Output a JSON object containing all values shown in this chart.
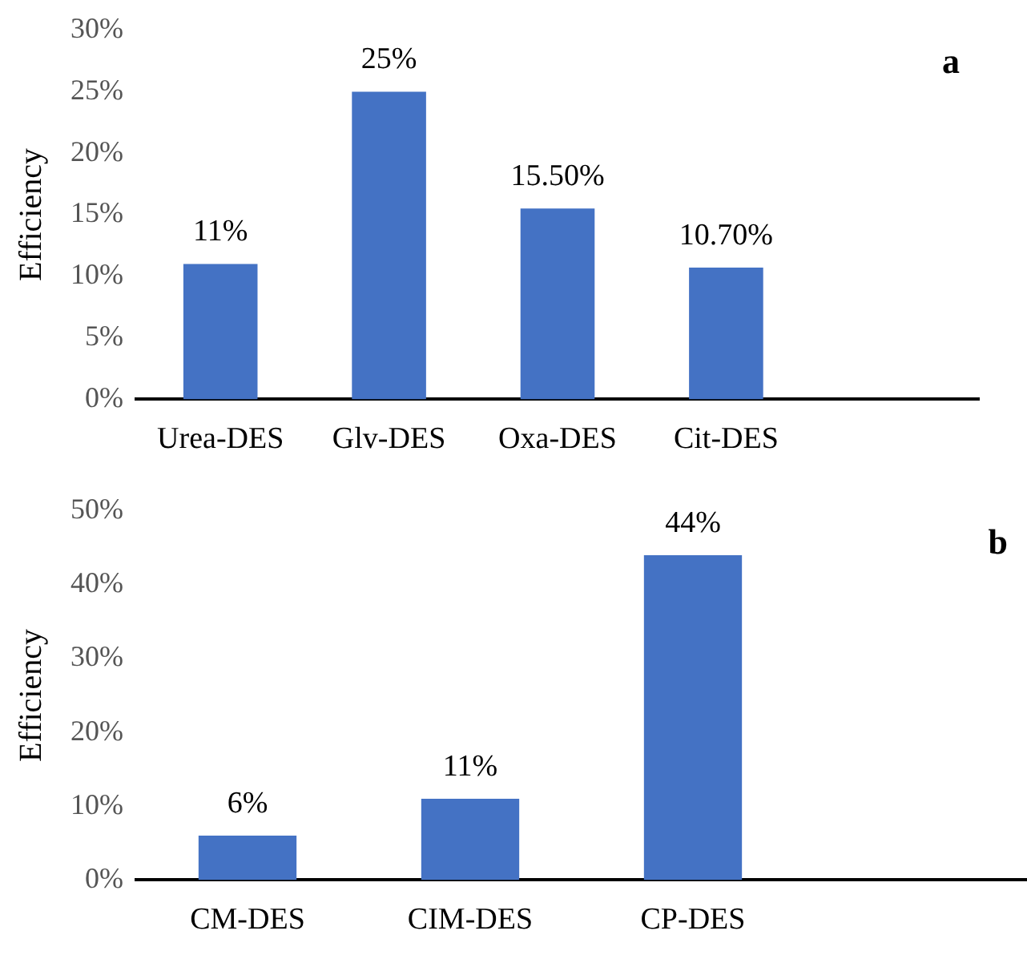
{
  "chart_data": [
    {
      "type": "bar",
      "categories": [
        "Urea-DES",
        "Glv-DES",
        "Oxa-DES",
        "Cit-DES",
        null
      ],
      "values": [
        11,
        25,
        15.5,
        10.7,
        null
      ],
      "color": "#4472c4",
      "value_labels": [
        "11%",
        "25%",
        "15.50%",
        "10.70%",
        null
      ],
      "ylabel": "Efficiency",
      "ylim": [
        0,
        30
      ],
      "yticks": [
        {
          "value": 0,
          "label": "0%"
        },
        {
          "value": 5,
          "label": "5%"
        },
        {
          "value": 10,
          "label": "10%"
        },
        {
          "value": 15,
          "label": "15%"
        },
        {
          "value": 20,
          "label": "20%"
        },
        {
          "value": 25,
          "label": "25%"
        },
        {
          "value": 30,
          "label": "30%"
        }
      ],
      "grid": false,
      "annotations": [
        "a"
      ]
    },
    {
      "type": "bar",
      "categories": [
        "CM-DES",
        "CIM-DES",
        "CP-DES",
        null
      ],
      "values": [
        6,
        11,
        44,
        null
      ],
      "color": "#4472c4",
      "value_labels": [
        "6%",
        "11%",
        "44%",
        null
      ],
      "ylabel": "Efficiency",
      "ylim": [
        0,
        50
      ],
      "yticks": [
        {
          "value": 0,
          "label": "0%"
        },
        {
          "value": 10,
          "label": "10%"
        },
        {
          "value": 20,
          "label": "20%"
        },
        {
          "value": 30,
          "label": "30%"
        },
        {
          "value": 40,
          "label": "40%"
        },
        {
          "value": 50,
          "label": "50%"
        }
      ],
      "grid": false,
      "annotations": [
        "b"
      ]
    }
  ]
}
